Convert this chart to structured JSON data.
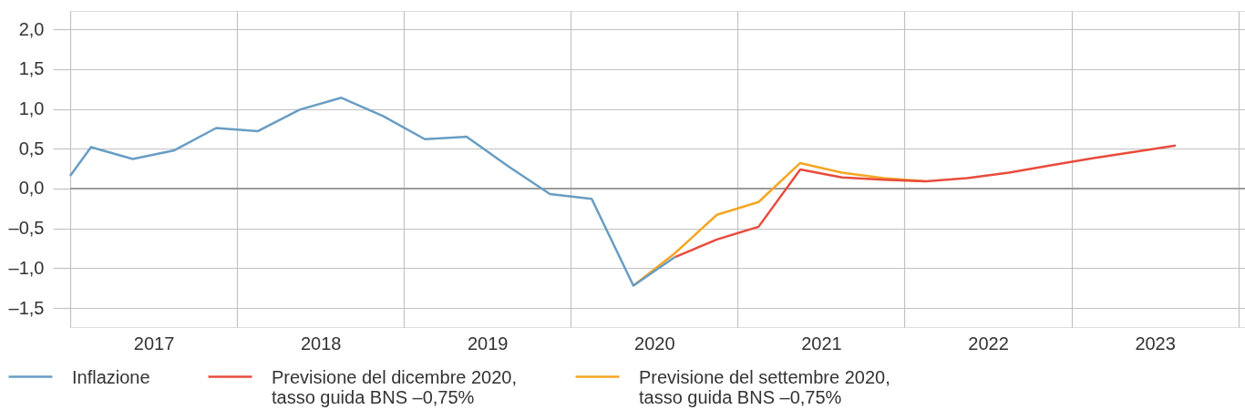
{
  "chart_data": {
    "type": "line",
    "xlim": [
      2017,
      2024.04
    ],
    "xticks": [
      {
        "value": 2017,
        "label": null
      },
      {
        "value": 2017.5,
        "label": "2017"
      },
      {
        "value": 2018,
        "label": null
      },
      {
        "value": 2018.5,
        "label": "2018"
      },
      {
        "value": 2019,
        "label": null
      },
      {
        "value": 2019.5,
        "label": "2019"
      },
      {
        "value": 2020,
        "label": null
      },
      {
        "value": 2020.5,
        "label": "2020"
      },
      {
        "value": 2021,
        "label": null
      },
      {
        "value": 2021.5,
        "label": "2021"
      },
      {
        "value": 2022,
        "label": null
      },
      {
        "value": 2022.5,
        "label": "2022"
      },
      {
        "value": 2023,
        "label": null
      },
      {
        "value": 2023.5,
        "label": "2023"
      },
      {
        "value": 2024,
        "label": null
      }
    ],
    "ylim": [
      -1.74,
      2.23
    ],
    "yticks": [
      {
        "value": -1.5,
        "label": "–1,5"
      },
      {
        "value": -1,
        "label": "–1,0"
      },
      {
        "value": -0.5,
        "label": "–0,5"
      },
      {
        "value": 0,
        "label": "0,0"
      },
      {
        "value": 0.5,
        "label": "0,5"
      },
      {
        "value": 1,
        "label": "1,0"
      },
      {
        "value": 1.5,
        "label": "1,5"
      },
      {
        "value": 2,
        "label": "2,0"
      }
    ],
    "grid": true,
    "legend": "bottom left",
    "ref_lines": [
      {
        "axis": "y",
        "value": 0,
        "color": "#9b9b9b"
      }
    ],
    "series": [
      {
        "name": "Inflazione",
        "color": "#689dc4",
        "x": [
          2017,
          2017.125,
          2017.375,
          2017.625,
          2017.875,
          2018.125,
          2018.375,
          2018.625,
          2018.875,
          2019.125,
          2019.375,
          2019.625,
          2019.875,
          2020.125,
          2020.375,
          2020.625
        ],
        "values": [
          0.16,
          0.52,
          0.37,
          0.48,
          0.76,
          0.72,
          0.99,
          1.14,
          0.91,
          0.62,
          0.65,
          0.28,
          -0.07,
          -0.13,
          -1.22,
          -0.86
        ]
      },
      {
        "name": "Previsione del dicembre 2020, tasso guida BNS –0,75%",
        "color": "#e84c3d",
        "x": [
          2020.625,
          2020.875,
          2021.125,
          2021.375,
          2021.625,
          2021.875,
          2022.125,
          2022.375,
          2022.625,
          2022.875,
          2023.125,
          2023.375,
          2023.625
        ],
        "values": [
          -0.86,
          -0.64,
          -0.48,
          0.24,
          0.14,
          0.11,
          0.09,
          0.13,
          0.2,
          0.29,
          0.38,
          0.46,
          0.54
        ]
      },
      {
        "name": "Previsione del settembre 2020, tasso guida BNS –0,75%",
        "color": "#f5a623",
        "x": [
          2020.375,
          2020.625,
          2020.875,
          2021.125,
          2021.375,
          2021.625,
          2021.875,
          2022.125
        ],
        "values": [
          -1.22,
          -0.81,
          -0.33,
          -0.17,
          0.32,
          0.2,
          0.13,
          0.09
        ]
      }
    ]
  }
}
